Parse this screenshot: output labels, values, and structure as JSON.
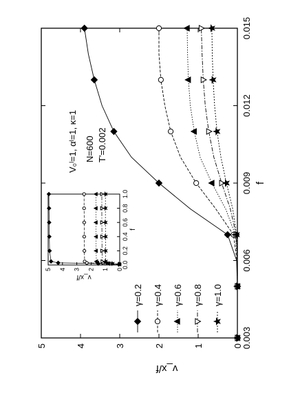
{
  "chart_data": [
    {
      "type": "line",
      "xlabel": "f",
      "ylabel": "v_x/f",
      "xlim": [
        0.003,
        0.015
      ],
      "ylim": [
        0,
        5
      ],
      "xticks": [
        "0.003",
        "0.006",
        "0.009",
        "0.012",
        "0.015"
      ],
      "yticks": [
        "0",
        "1",
        "2",
        "3",
        "4",
        "5"
      ],
      "grid": false,
      "legend": "bottom-left",
      "annotations": [
        "V₀ˡ=1, αˡ=1, κ=1",
        "N=600",
        "T'=0.002"
      ],
      "series": [
        {
          "name": "γ=0.2",
          "marker": "filled-diamond",
          "x": [
            0.003,
            0.004,
            0.005,
            0.006,
            0.007,
            0.008,
            0.009,
            0.01,
            0.011,
            0.012,
            0.013,
            0.014,
            0.015
          ],
          "y": [
            0.0,
            0.0,
            0.0,
            0.02,
            0.25,
            1.2,
            2.0,
            2.7,
            3.15,
            3.45,
            3.65,
            3.8,
            3.9
          ]
        },
        {
          "name": "γ=0.4",
          "marker": "open-circle",
          "x": [
            0.003,
            0.004,
            0.005,
            0.006,
            0.007,
            0.008,
            0.009,
            0.01,
            0.011,
            0.012,
            0.013,
            0.014,
            0.015
          ],
          "y": [
            0.0,
            0.0,
            0.0,
            0.01,
            0.1,
            0.55,
            1.05,
            1.45,
            1.7,
            1.85,
            1.95,
            2.0,
            2.0
          ]
        },
        {
          "name": "γ=0.6",
          "marker": "filled-triangle",
          "x": [
            0.003,
            0.004,
            0.005,
            0.006,
            0.007,
            0.008,
            0.009,
            0.01,
            0.011,
            0.012,
            0.013,
            0.014,
            0.015
          ],
          "y": [
            0.0,
            0.0,
            0.0,
            0.0,
            0.05,
            0.3,
            0.65,
            0.95,
            1.1,
            1.2,
            1.25,
            1.27,
            1.28
          ]
        },
        {
          "name": "γ=0.8",
          "marker": "open-triangle-down",
          "x": [
            0.003,
            0.004,
            0.005,
            0.006,
            0.007,
            0.008,
            0.009,
            0.01,
            0.011,
            0.012,
            0.013,
            0.014,
            0.015
          ],
          "y": [
            0.0,
            0.0,
            0.0,
            0.0,
            0.03,
            0.18,
            0.4,
            0.6,
            0.73,
            0.82,
            0.87,
            0.9,
            0.92
          ]
        },
        {
          "name": "γ=1.0",
          "marker": "star",
          "x": [
            0.003,
            0.004,
            0.005,
            0.006,
            0.007,
            0.008,
            0.009,
            0.01,
            0.011,
            0.012,
            0.013,
            0.014,
            0.015
          ],
          "y": [
            0.0,
            0.0,
            0.0,
            0.0,
            0.02,
            0.12,
            0.28,
            0.42,
            0.52,
            0.58,
            0.62,
            0.64,
            0.65
          ]
        }
      ]
    },
    {
      "type": "scatter",
      "xlabel": "f",
      "ylabel": "v_x/f",
      "xlim": [
        0,
        1.0
      ],
      "ylim": [
        0,
        5
      ],
      "xticks": [
        "0.0",
        "0.2",
        "0.4",
        "0.6",
        "0.8",
        "1.0"
      ],
      "yticks": [
        "0",
        "1",
        "2",
        "3",
        "4",
        "5"
      ],
      "series": [
        {
          "name": "γ=0.2",
          "marker": "filled-diamond",
          "x": [
            0.01,
            0.02,
            0.03,
            0.05,
            0.2,
            0.4,
            0.6,
            0.8,
            1.0
          ],
          "y": [
            0.05,
            1.5,
            4.3,
            4.8,
            4.9,
            4.92,
            4.93,
            4.94,
            4.95
          ]
        },
        {
          "name": "γ=0.4",
          "marker": "open-circle",
          "x": [
            0.01,
            0.02,
            0.03,
            0.05,
            0.2,
            0.4,
            0.6,
            0.8,
            1.0
          ],
          "y": [
            0.05,
            1.0,
            2.3,
            2.45,
            2.47,
            2.48,
            2.48,
            2.49,
            2.49
          ]
        },
        {
          "name": "γ=0.6",
          "marker": "filled-triangle",
          "x": [
            0.01,
            0.02,
            0.03,
            0.05,
            0.2,
            0.4,
            0.6,
            0.8,
            1.0
          ],
          "y": [
            0.03,
            0.8,
            1.55,
            1.63,
            1.65,
            1.65,
            1.66,
            1.66,
            1.66
          ]
        },
        {
          "name": "γ=0.8",
          "marker": "open-triangle-down",
          "x": [
            0.01,
            0.02,
            0.03,
            0.05,
            0.2,
            0.4,
            0.6,
            0.8,
            1.0
          ],
          "y": [
            0.02,
            0.6,
            1.15,
            1.22,
            1.24,
            1.24,
            1.25,
            1.25,
            1.25
          ]
        },
        {
          "name": "γ=1.0",
          "marker": "star",
          "x": [
            0.01,
            0.02,
            0.03,
            0.05,
            0.2,
            0.4,
            0.6,
            0.8,
            1.0
          ],
          "y": [
            0.02,
            0.5,
            0.92,
            0.98,
            0.99,
            0.99,
            1.0,
            1.0,
            1.0
          ]
        }
      ]
    }
  ]
}
